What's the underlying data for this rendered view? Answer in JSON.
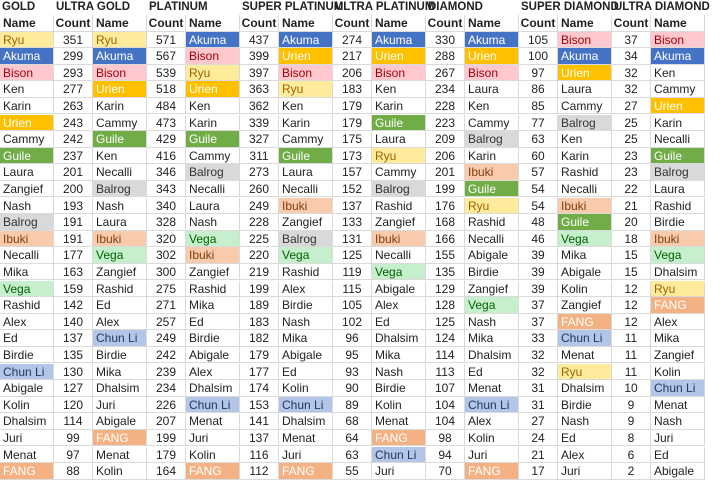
{
  "headers": {
    "name_label": "Name",
    "count_label": "Count"
  },
  "character_colors": {
    "Ryu": {
      "bg": "#ffeb9c",
      "fg": "#9c6500"
    },
    "Akuma": {
      "bg": "#4472c4",
      "fg": "#ffffff"
    },
    "Bison": {
      "bg": "#ffc7ce",
      "fg": "#9c0006"
    },
    "Urien": {
      "bg": "#ffc000",
      "fg": "#ffffff"
    },
    "Guile": {
      "bg": "#70ad47",
      "fg": "#ffffff"
    },
    "Balrog": {
      "bg": "#d9d9d9",
      "fg": "#333333"
    },
    "Ibuki": {
      "bg": "#f8cbad",
      "fg": "#843c0c"
    },
    "Vega": {
      "bg": "#c6efce",
      "fg": "#006100"
    },
    "Chun Li": {
      "bg": "#b4c6e7",
      "fg": "#1f3864"
    },
    "FANG": {
      "bg": "#f4b183",
      "fg": "#ffffff"
    }
  },
  "tiers": [
    {
      "title": "GOLD",
      "rows": [
        {
          "name": "Ryu",
          "count": 351
        },
        {
          "name": "Akuma",
          "count": 299
        },
        {
          "name": "Bison",
          "count": 293
        },
        {
          "name": "Ken",
          "count": 277
        },
        {
          "name": "Karin",
          "count": 263
        },
        {
          "name": "Urien",
          "count": 243
        },
        {
          "name": "Cammy",
          "count": 242
        },
        {
          "name": "Guile",
          "count": 237
        },
        {
          "name": "Laura",
          "count": 201
        },
        {
          "name": "Zangief",
          "count": 200
        },
        {
          "name": "Nash",
          "count": 193
        },
        {
          "name": "Balrog",
          "count": 191
        },
        {
          "name": "Ibuki",
          "count": 191
        },
        {
          "name": "Necalli",
          "count": 177
        },
        {
          "name": "Mika",
          "count": 163
        },
        {
          "name": "Vega",
          "count": 159
        },
        {
          "name": "Rashid",
          "count": 142
        },
        {
          "name": "Alex",
          "count": 140
        },
        {
          "name": "Ed",
          "count": 137
        },
        {
          "name": "Birdie",
          "count": 135
        },
        {
          "name": "Chun Li",
          "count": 130
        },
        {
          "name": "Abigale",
          "count": 127
        },
        {
          "name": "Kolin",
          "count": 120
        },
        {
          "name": "Dhalsim",
          "count": 114
        },
        {
          "name": "Juri",
          "count": 99
        },
        {
          "name": "Menat",
          "count": 97
        },
        {
          "name": "FANG",
          "count": 88
        }
      ]
    },
    {
      "title": "ULTRA GOLD",
      "rows": [
        {
          "name": "Ryu",
          "count": 571
        },
        {
          "name": "Akuma",
          "count": 567
        },
        {
          "name": "Bison",
          "count": 539
        },
        {
          "name": "Urien",
          "count": 518
        },
        {
          "name": "Karin",
          "count": 484
        },
        {
          "name": "Cammy",
          "count": 473
        },
        {
          "name": "Guile",
          "count": 429
        },
        {
          "name": "Ken",
          "count": 416
        },
        {
          "name": "Necalli",
          "count": 346
        },
        {
          "name": "Balrog",
          "count": 343
        },
        {
          "name": "Nash",
          "count": 340
        },
        {
          "name": "Laura",
          "count": 328
        },
        {
          "name": "Ibuki",
          "count": 320
        },
        {
          "name": "Vega",
          "count": 302
        },
        {
          "name": "Zangief",
          "count": 300
        },
        {
          "name": "Rashid",
          "count": 275
        },
        {
          "name": "Ed",
          "count": 271
        },
        {
          "name": "Alex",
          "count": 257
        },
        {
          "name": "Chun Li",
          "count": 249
        },
        {
          "name": "Birdie",
          "count": 242
        },
        {
          "name": "Mika",
          "count": 239
        },
        {
          "name": "Dhalsim",
          "count": 234
        },
        {
          "name": "Juri",
          "count": 226
        },
        {
          "name": "Abigale",
          "count": 207
        },
        {
          "name": "FANG",
          "count": 199
        },
        {
          "name": "Menat",
          "count": 179
        },
        {
          "name": "Kolin",
          "count": 164
        }
      ]
    },
    {
      "title": "PLATINUM",
      "rows": [
        {
          "name": "Akuma",
          "count": 437
        },
        {
          "name": "Bison",
          "count": 399
        },
        {
          "name": "Ryu",
          "count": 397
        },
        {
          "name": "Urien",
          "count": 363
        },
        {
          "name": "Ken",
          "count": 362
        },
        {
          "name": "Karin",
          "count": 339
        },
        {
          "name": "Guile",
          "count": 327
        },
        {
          "name": "Cammy",
          "count": 311
        },
        {
          "name": "Balrog",
          "count": 273
        },
        {
          "name": "Necalli",
          "count": 260
        },
        {
          "name": "Laura",
          "count": 249
        },
        {
          "name": "Nash",
          "count": 228
        },
        {
          "name": "Vega",
          "count": 225
        },
        {
          "name": "Ibuki",
          "count": 220
        },
        {
          "name": "Zangief",
          "count": 219
        },
        {
          "name": "Rashid",
          "count": 199
        },
        {
          "name": "Mika",
          "count": 189
        },
        {
          "name": "Ed",
          "count": 183
        },
        {
          "name": "Birdie",
          "count": 182
        },
        {
          "name": "Abigale",
          "count": 179
        },
        {
          "name": "Alex",
          "count": 177
        },
        {
          "name": "Dhalsim",
          "count": 174
        },
        {
          "name": "Chun Li",
          "count": 153
        },
        {
          "name": "Menat",
          "count": 141
        },
        {
          "name": "Juri",
          "count": 137
        },
        {
          "name": "Kolin",
          "count": 116
        },
        {
          "name": "FANG",
          "count": 112
        }
      ]
    },
    {
      "title": "SUPER PLATINUM",
      "rows": [
        {
          "name": "Akuma",
          "count": 274
        },
        {
          "name": "Urien",
          "count": 217
        },
        {
          "name": "Bison",
          "count": 206
        },
        {
          "name": "Ryu",
          "count": 183
        },
        {
          "name": "Ken",
          "count": 179
        },
        {
          "name": "Karin",
          "count": 179
        },
        {
          "name": "Cammy",
          "count": 175
        },
        {
          "name": "Guile",
          "count": 173
        },
        {
          "name": "Laura",
          "count": 157
        },
        {
          "name": "Necalli",
          "count": 152
        },
        {
          "name": "Ibuki",
          "count": 137
        },
        {
          "name": "Zangief",
          "count": 133
        },
        {
          "name": "Balrog",
          "count": 131
        },
        {
          "name": "Vega",
          "count": 125
        },
        {
          "name": "Rashid",
          "count": 119
        },
        {
          "name": "Alex",
          "count": 115
        },
        {
          "name": "Birdie",
          "count": 105
        },
        {
          "name": "Nash",
          "count": 102
        },
        {
          "name": "Mika",
          "count": 96
        },
        {
          "name": "Abigale",
          "count": 95
        },
        {
          "name": "Ed",
          "count": 93
        },
        {
          "name": "Kolin",
          "count": 90
        },
        {
          "name": "Chun Li",
          "count": 89
        },
        {
          "name": "Dhalsim",
          "count": 68
        },
        {
          "name": "Menat",
          "count": 64
        },
        {
          "name": "Juri",
          "count": 63
        },
        {
          "name": "FANG",
          "count": 55
        }
      ]
    },
    {
      "title": "ULTRA PLATINUM",
      "rows": [
        {
          "name": "Akuma",
          "count": 330
        },
        {
          "name": "Urien",
          "count": 288
        },
        {
          "name": "Bison",
          "count": 267
        },
        {
          "name": "Ken",
          "count": 234
        },
        {
          "name": "Karin",
          "count": 228
        },
        {
          "name": "Guile",
          "count": 223
        },
        {
          "name": "Laura",
          "count": 209
        },
        {
          "name": "Ryu",
          "count": 206
        },
        {
          "name": "Cammy",
          "count": 201
        },
        {
          "name": "Balrog",
          "count": 199
        },
        {
          "name": "Rashid",
          "count": 176
        },
        {
          "name": "Zangief",
          "count": 168
        },
        {
          "name": "Ibuki",
          "count": 166
        },
        {
          "name": "Necalli",
          "count": 155
        },
        {
          "name": "Vega",
          "count": 135
        },
        {
          "name": "Abigale",
          "count": 129
        },
        {
          "name": "Alex",
          "count": 128
        },
        {
          "name": "Ed",
          "count": 125
        },
        {
          "name": "Dhalsim",
          "count": 124
        },
        {
          "name": "Mika",
          "count": 114
        },
        {
          "name": "Nash",
          "count": 113
        },
        {
          "name": "Birdie",
          "count": 107
        },
        {
          "name": "Kolin",
          "count": 104
        },
        {
          "name": "Menat",
          "count": 104
        },
        {
          "name": "FANG",
          "count": 98
        },
        {
          "name": "Chun Li",
          "count": 94
        },
        {
          "name": "Juri",
          "count": 70
        }
      ]
    },
    {
      "title": "DIAMOND",
      "rows": [
        {
          "name": "Akuma",
          "count": 105
        },
        {
          "name": "Urien",
          "count": 100
        },
        {
          "name": "Bison",
          "count": 97
        },
        {
          "name": "Laura",
          "count": 86
        },
        {
          "name": "Ken",
          "count": 85
        },
        {
          "name": "Cammy",
          "count": 77
        },
        {
          "name": "Balrog",
          "count": 63
        },
        {
          "name": "Karin",
          "count": 60
        },
        {
          "name": "Ibuki",
          "count": 57
        },
        {
          "name": "Guile",
          "count": 54
        },
        {
          "name": "Ryu",
          "count": 54
        },
        {
          "name": "Rashid",
          "count": 48
        },
        {
          "name": "Necalli",
          "count": 46
        },
        {
          "name": "Abigale",
          "count": 39
        },
        {
          "name": "Birdie",
          "count": 39
        },
        {
          "name": "Zangief",
          "count": 39
        },
        {
          "name": "Vega",
          "count": 37
        },
        {
          "name": "Nash",
          "count": 37
        },
        {
          "name": "Mika",
          "count": 33
        },
        {
          "name": "Dhalsim",
          "count": 32
        },
        {
          "name": "Ed",
          "count": 32
        },
        {
          "name": "Menat",
          "count": 31
        },
        {
          "name": "Chun Li",
          "count": 31
        },
        {
          "name": "Alex",
          "count": 27
        },
        {
          "name": "Kolin",
          "count": 24
        },
        {
          "name": "Juri",
          "count": 21
        },
        {
          "name": "FANG",
          "count": 17
        }
      ]
    },
    {
      "title": "SUPER DIAMOND",
      "rows": [
        {
          "name": "Bison",
          "count": 37
        },
        {
          "name": "Akuma",
          "count": 34
        },
        {
          "name": "Urien",
          "count": 32
        },
        {
          "name": "Laura",
          "count": 32
        },
        {
          "name": "Cammy",
          "count": 27
        },
        {
          "name": "Balrog",
          "count": 25
        },
        {
          "name": "Ken",
          "count": 25
        },
        {
          "name": "Karin",
          "count": 23
        },
        {
          "name": "Rashid",
          "count": 23
        },
        {
          "name": "Necalli",
          "count": 22
        },
        {
          "name": "Ibuki",
          "count": 21
        },
        {
          "name": "Guile",
          "count": 20
        },
        {
          "name": "Vega",
          "count": 18
        },
        {
          "name": "Mika",
          "count": 15
        },
        {
          "name": "Abigale",
          "count": 15
        },
        {
          "name": "Kolin",
          "count": 12
        },
        {
          "name": "Zangief",
          "count": 12
        },
        {
          "name": "FANG",
          "count": 12
        },
        {
          "name": "Chun Li",
          "count": 11
        },
        {
          "name": "Menat",
          "count": 11
        },
        {
          "name": "Ryu",
          "count": 11
        },
        {
          "name": "Dhalsim",
          "count": 10
        },
        {
          "name": "Birdie",
          "count": 9
        },
        {
          "name": "Nash",
          "count": 9
        },
        {
          "name": "Ed",
          "count": 8
        },
        {
          "name": "Alex",
          "count": 6
        },
        {
          "name": "Juri",
          "count": 2
        }
      ]
    },
    {
      "title": "ULTRA DIAMOND",
      "rows": [
        {
          "name": "Bison"
        },
        {
          "name": "Akuma"
        },
        {
          "name": "Ken"
        },
        {
          "name": "Cammy"
        },
        {
          "name": "Urien"
        },
        {
          "name": "Karin"
        },
        {
          "name": "Necalli"
        },
        {
          "name": "Guile"
        },
        {
          "name": "Balrog"
        },
        {
          "name": "Laura"
        },
        {
          "name": "Rashid"
        },
        {
          "name": "Birdie"
        },
        {
          "name": "Ibuki"
        },
        {
          "name": "Vega"
        },
        {
          "name": "Dhalsim"
        },
        {
          "name": "Ryu"
        },
        {
          "name": "FANG"
        },
        {
          "name": "Alex"
        },
        {
          "name": "Mika"
        },
        {
          "name": "Zangief"
        },
        {
          "name": "Kolin"
        },
        {
          "name": "Chun Li"
        },
        {
          "name": "Menat"
        },
        {
          "name": "Nash"
        },
        {
          "name": "Juri"
        },
        {
          "name": "Ed"
        },
        {
          "name": "Abigale"
        }
      ]
    }
  ]
}
